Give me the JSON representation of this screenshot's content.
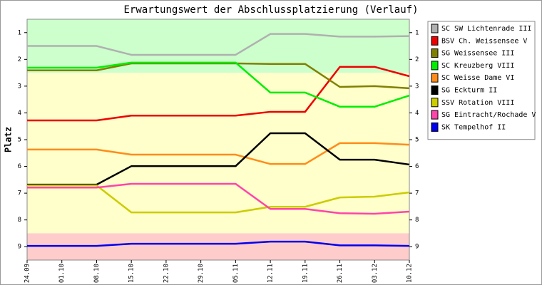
{
  "chart_data": {
    "type": "line",
    "title": "Erwartungswert der Abschlussplatzierung (Verlauf)",
    "y_label": "Platz",
    "categories": [
      "24.09",
      "01.10",
      "08.10",
      "15.10",
      "22.10",
      "29.10",
      "05.11",
      "12.11",
      "19.11",
      "26.11",
      "03.12",
      "10.12"
    ],
    "ylim": [
      9.5,
      0.5
    ],
    "yticks": [
      1,
      2,
      3,
      4,
      5,
      6,
      7,
      8,
      9
    ],
    "bands": [
      {
        "from": 0.5,
        "to": 2.5,
        "color": "#ccffcc"
      },
      {
        "from": 2.5,
        "to": 8.5,
        "color": "#ffffcc"
      },
      {
        "from": 8.5,
        "to": 9.5,
        "color": "#ffcccc"
      }
    ],
    "series": [
      {
        "name": "SC SW Lichtenrade III",
        "color": "#b0b0b0",
        "values": [
          1.5,
          1.5,
          1.5,
          1.83,
          1.83,
          1.83,
          1.83,
          1.05,
          1.05,
          1.15,
          1.15,
          1.13
        ]
      },
      {
        "name": "BSV Ch. Weissensee V",
        "color": "#ee0000",
        "values": [
          4.28,
          4.28,
          4.28,
          4.1,
          4.1,
          4.1,
          4.1,
          3.96,
          3.96,
          2.28,
          2.28,
          2.63
        ]
      },
      {
        "name": "SG Weissensee III",
        "color": "#808000",
        "values": [
          2.41,
          2.41,
          2.41,
          2.15,
          2.15,
          2.15,
          2.15,
          2.17,
          2.17,
          3.03,
          3.0,
          3.08
        ]
      },
      {
        "name": "SC Kreuzberg VIII",
        "color": "#00ee00",
        "values": [
          2.31,
          2.31,
          2.31,
          2.12,
          2.12,
          2.12,
          2.12,
          3.24,
          3.24,
          3.77,
          3.77,
          3.35
        ]
      },
      {
        "name": "SC Weisse Dame VI",
        "color": "#ff8c1a",
        "values": [
          5.37,
          5.37,
          5.37,
          5.56,
          5.56,
          5.56,
          5.56,
          5.91,
          5.91,
          5.13,
          5.13,
          5.19
        ]
      },
      {
        "name": "SG Eckturm II",
        "color": "#000000",
        "values": [
          6.68,
          6.68,
          6.68,
          5.99,
          5.99,
          5.99,
          5.99,
          4.76,
          4.76,
          5.75,
          5.75,
          5.93
        ]
      },
      {
        "name": "SSV Rotation VIII",
        "color": "#cccc00",
        "values": [
          6.71,
          6.71,
          6.71,
          7.72,
          7.72,
          7.72,
          7.72,
          7.51,
          7.51,
          7.16,
          7.13,
          6.97
        ]
      },
      {
        "name": "SG Eintracht/Rochade V",
        "color": "#ff44aa",
        "values": [
          6.79,
          6.79,
          6.79,
          6.65,
          6.65,
          6.65,
          6.65,
          7.59,
          7.59,
          7.75,
          7.77,
          7.69
        ]
      },
      {
        "name": "SK Tempelhof II",
        "color": "#0000ee",
        "values": [
          8.97,
          8.97,
          8.97,
          8.89,
          8.89,
          8.89,
          8.89,
          8.81,
          8.81,
          8.95,
          8.95,
          8.97
        ]
      }
    ]
  }
}
